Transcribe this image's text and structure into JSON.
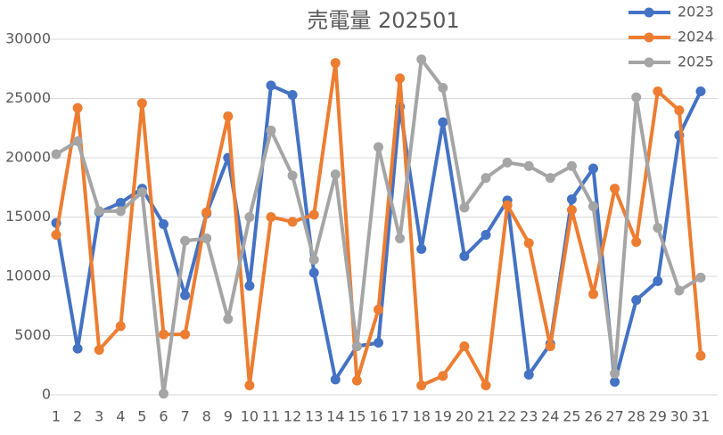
{
  "chart_data": {
    "type": "line",
    "title": "売電量 202501",
    "categories": [
      "1",
      "2",
      "3",
      "4",
      "5",
      "6",
      "7",
      "8",
      "9",
      "10",
      "11",
      "12",
      "13",
      "14",
      "15",
      "16",
      "17",
      "18",
      "19",
      "20",
      "21",
      "22",
      "23",
      "24",
      "25",
      "26",
      "27",
      "28",
      "29",
      "30",
      "31"
    ],
    "series": [
      {
        "name": "2023",
        "color": "#4472c4",
        "values": [
          14500,
          3900,
          15400,
          16200,
          17400,
          14400,
          8400,
          15300,
          20000,
          9200,
          26100,
          25300,
          10300,
          1300,
          4100,
          4400,
          24300,
          12300,
          23000,
          11700,
          13500,
          16400,
          1700,
          4300,
          16500,
          19100,
          1100,
          8000,
          9600,
          21900,
          25600
        ]
      },
      {
        "name": "2024",
        "color": "#ed7d31",
        "values": [
          13500,
          24200,
          3800,
          5800,
          24600,
          5100,
          5100,
          15400,
          23500,
          800,
          15000,
          14600,
          15200,
          28000,
          1200,
          7200,
          26700,
          800,
          1600,
          4100,
          800,
          16000,
          12800,
          4100,
          15600,
          8500,
          17400,
          12900,
          25600,
          24000,
          3300
        ]
      },
      {
        "name": "2025",
        "color": "#a5a5a5",
        "values": [
          20300,
          21400,
          15500,
          15500,
          17100,
          100,
          13000,
          13200,
          6400,
          15000,
          22300,
          18500,
          11400,
          18600,
          4100,
          20900,
          13200,
          28300,
          25900,
          15800,
          18300,
          19600,
          19300,
          18300,
          19300,
          15900,
          1800,
          25100,
          14100,
          8800,
          9900
        ]
      }
    ],
    "ylim": [
      0,
      30000
    ],
    "yticks": [
      0,
      5000,
      10000,
      15000,
      20000,
      25000,
      30000
    ],
    "grid": true,
    "legend": "top-right"
  }
}
